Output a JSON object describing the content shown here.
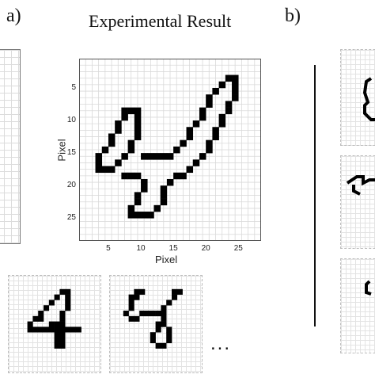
{
  "figure": {
    "panel_a_label": "a)",
    "panel_b_label": "b)",
    "title": "Experimental Result",
    "ellipsis": "..."
  },
  "chart_data": {
    "type": "heatmap",
    "title": "Experimental Result",
    "xlabel": "Pixel",
    "ylabel": "Pixel",
    "xlim": [
      0.5,
      28.5
    ],
    "ylim": [
      0.5,
      28.5
    ],
    "xticks": [
      5,
      10,
      15,
      20,
      25
    ],
    "yticks": [
      5,
      10,
      15,
      20,
      25
    ],
    "grid": true,
    "colormap": {
      "on": "#000000",
      "off": "#ffffff"
    },
    "on_pixels": [
      [
        23,
        3
      ],
      [
        24,
        3
      ],
      [
        22,
        4
      ],
      [
        24,
        4
      ],
      [
        21,
        5
      ],
      [
        24,
        5
      ],
      [
        20,
        6
      ],
      [
        24,
        6
      ],
      [
        20,
        7
      ],
      [
        23,
        7
      ],
      [
        7,
        8
      ],
      [
        8,
        8
      ],
      [
        9,
        8
      ],
      [
        19,
        8
      ],
      [
        23,
        8
      ],
      [
        7,
        9
      ],
      [
        9,
        9
      ],
      [
        19,
        9
      ],
      [
        22,
        9
      ],
      [
        6,
        10
      ],
      [
        9,
        10
      ],
      [
        18,
        10
      ],
      [
        22,
        10
      ],
      [
        6,
        11
      ],
      [
        9,
        11
      ],
      [
        17,
        11
      ],
      [
        21,
        11
      ],
      [
        5,
        12
      ],
      [
        9,
        12
      ],
      [
        17,
        12
      ],
      [
        21,
        12
      ],
      [
        5,
        13
      ],
      [
        8,
        13
      ],
      [
        16,
        13
      ],
      [
        20,
        13
      ],
      [
        4,
        14
      ],
      [
        8,
        14
      ],
      [
        15,
        14
      ],
      [
        20,
        14
      ],
      [
        3,
        15
      ],
      [
        7,
        15
      ],
      [
        10,
        15
      ],
      [
        11,
        15
      ],
      [
        12,
        15
      ],
      [
        13,
        15
      ],
      [
        14,
        15
      ],
      [
        19,
        15
      ],
      [
        3,
        16
      ],
      [
        6,
        16
      ],
      [
        18,
        16
      ],
      [
        3,
        17
      ],
      [
        4,
        17
      ],
      [
        5,
        17
      ],
      [
        17,
        17
      ],
      [
        7,
        18
      ],
      [
        8,
        18
      ],
      [
        9,
        18
      ],
      [
        15,
        18
      ],
      [
        16,
        18
      ],
      [
        10,
        19
      ],
      [
        14,
        19
      ],
      [
        10,
        20
      ],
      [
        13,
        20
      ],
      [
        9,
        21
      ],
      [
        13,
        21
      ],
      [
        9,
        22
      ],
      [
        13,
        22
      ],
      [
        8,
        23
      ],
      [
        12,
        23
      ],
      [
        8,
        24
      ],
      [
        9,
        24
      ],
      [
        10,
        24
      ],
      [
        11,
        24
      ]
    ]
  },
  "thumbnails": [
    {
      "on_pixels": [
        [
          9,
          2
        ],
        [
          10,
          2
        ],
        [
          8,
          3
        ],
        [
          10,
          3
        ],
        [
          7,
          4
        ],
        [
          10,
          4
        ],
        [
          6,
          5
        ],
        [
          10,
          5
        ],
        [
          5,
          6
        ],
        [
          9,
          6
        ],
        [
          4,
          7
        ],
        [
          5,
          7
        ],
        [
          9,
          7
        ],
        [
          3,
          8
        ],
        [
          7,
          8
        ],
        [
          8,
          8
        ],
        [
          9,
          8
        ],
        [
          3,
          9
        ],
        [
          4,
          9
        ],
        [
          5,
          9
        ],
        [
          6,
          9
        ],
        [
          7,
          9
        ],
        [
          8,
          9
        ],
        [
          9,
          9
        ],
        [
          10,
          9
        ],
        [
          11,
          9
        ],
        [
          12,
          9
        ],
        [
          8,
          10
        ],
        [
          9,
          10
        ],
        [
          8,
          11
        ],
        [
          9,
          11
        ],
        [
          8,
          12
        ],
        [
          9,
          12
        ]
      ]
    },
    {
      "on_pixels": [
        [
          4,
          2
        ],
        [
          5,
          2
        ],
        [
          11,
          2
        ],
        [
          12,
          2
        ],
        [
          3,
          3
        ],
        [
          4,
          3
        ],
        [
          11,
          3
        ],
        [
          3,
          4
        ],
        [
          10,
          4
        ],
        [
          3,
          5
        ],
        [
          9,
          5
        ],
        [
          2,
          6
        ],
        [
          5,
          6
        ],
        [
          6,
          6
        ],
        [
          7,
          6
        ],
        [
          8,
          6
        ],
        [
          9,
          6
        ],
        [
          3,
          7
        ],
        [
          4,
          7
        ],
        [
          9,
          7
        ],
        [
          8,
          8
        ],
        [
          9,
          8
        ],
        [
          8,
          9
        ],
        [
          10,
          9
        ],
        [
          7,
          10
        ],
        [
          10,
          10
        ],
        [
          7,
          11
        ],
        [
          10,
          11
        ],
        [
          8,
          12
        ],
        [
          9,
          12
        ]
      ]
    }
  ]
}
